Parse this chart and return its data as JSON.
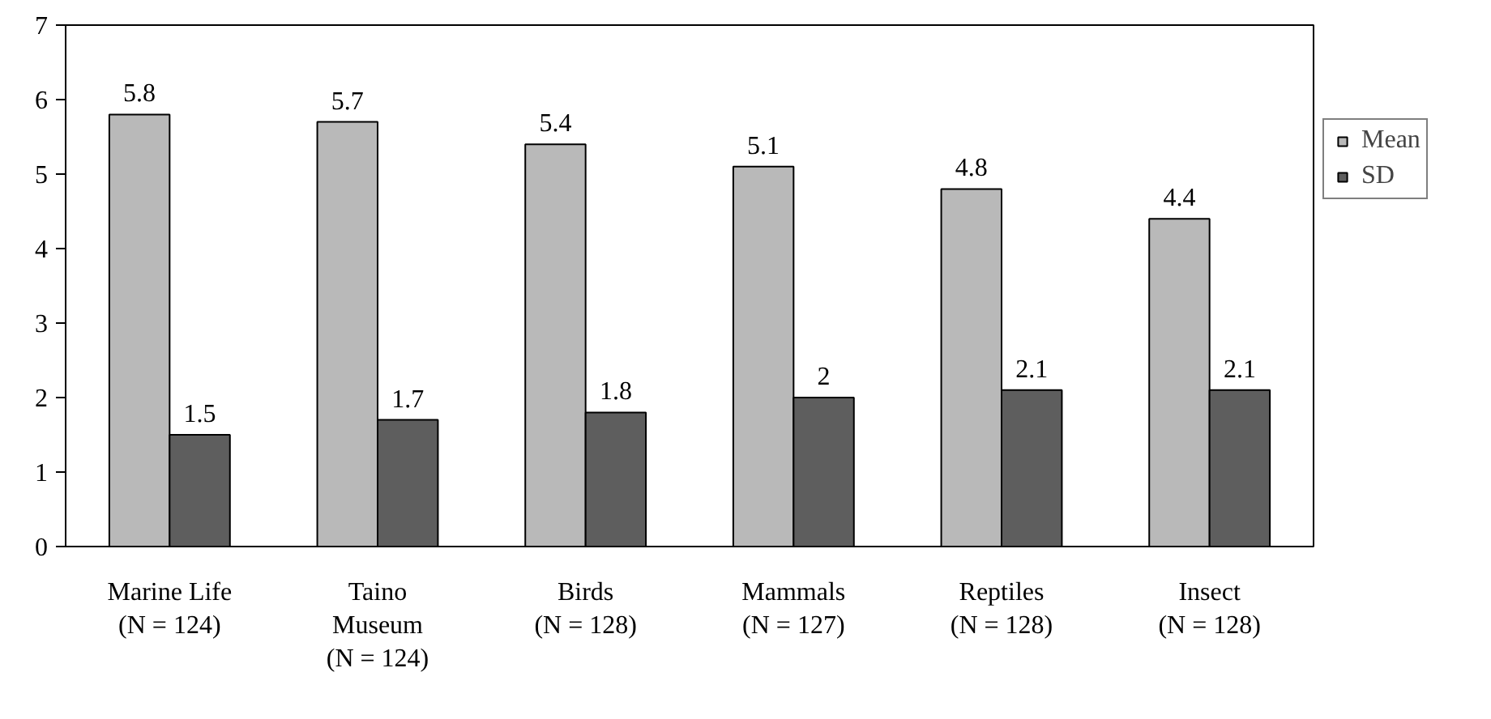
{
  "chart_data": {
    "type": "bar",
    "categories": [
      "Marine Life\n(N = 124)",
      "Taino\nMuseum\n(N = 124)",
      "Birds\n(N = 128)",
      "Mammals\n(N = 127)",
      "Reptiles\n(N = 128)",
      "Insect\n(N = 128)"
    ],
    "series": [
      {
        "name": "Mean",
        "color": "#b9b9b9",
        "values": [
          5.8,
          5.7,
          5.4,
          5.1,
          4.8,
          4.4
        ]
      },
      {
        "name": "SD",
        "color": "#5e5e5e",
        "values": [
          1.5,
          1.7,
          1.8,
          2,
          2.1,
          2.1
        ]
      }
    ],
    "ylim": [
      0,
      7
    ],
    "yticks": [
      0,
      1,
      2,
      3,
      4,
      5,
      6,
      7
    ],
    "grid": false,
    "legend": "right",
    "data_labels": true
  }
}
